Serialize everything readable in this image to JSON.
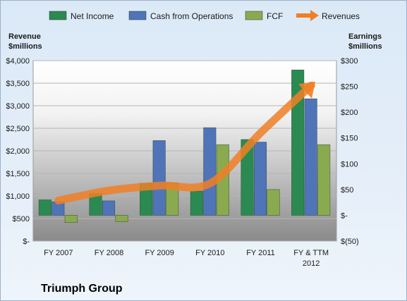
{
  "chart_data": {
    "type": "bar",
    "categories": [
      [
        "FY 2007"
      ],
      [
        "FY 2008"
      ],
      [
        "FY 2009"
      ],
      [
        "FY 2010"
      ],
      [
        "FY 2011"
      ],
      [
        "FY & TTM",
        "2012"
      ]
    ],
    "series": [
      {
        "name": "Net Income",
        "axis": "right",
        "color": "#2a8a52",
        "values": [
          30,
          42,
          62,
          47,
          147,
          282
        ]
      },
      {
        "name": "Cash from Operations",
        "axis": "right",
        "color": "#4f74b8",
        "values": [
          26,
          28,
          145,
          170,
          142,
          226
        ]
      },
      {
        "name": "FCF",
        "axis": "right",
        "color": "#8aaa50",
        "values": [
          -14,
          -12,
          63,
          137,
          50,
          137
        ]
      }
    ],
    "line_series": {
      "name": "Revenues",
      "axis": "left",
      "color": "#f07f26",
      "values": [
        900,
        1120,
        1230,
        1280,
        2400,
        3450
      ]
    },
    "left_axis": {
      "title": [
        "Revenue",
        "$millions"
      ],
      "min": 0,
      "max": 4000,
      "step": 500,
      "tick_labels": [
        "$-",
        "$500",
        "$1,000",
        "$1,500",
        "$2,000",
        "$2,500",
        "$3,000",
        "$3,500",
        "$4,000"
      ]
    },
    "right_axis": {
      "title": [
        "Earnings",
        "$millions"
      ],
      "min": -50,
      "max": 300,
      "step": 50,
      "tick_labels": [
        "$(50)",
        "$-",
        "$50",
        "$100",
        "$150",
        "$200",
        "$250",
        "$300"
      ]
    },
    "legend_position": "top",
    "company_label": "Triumph Group"
  }
}
